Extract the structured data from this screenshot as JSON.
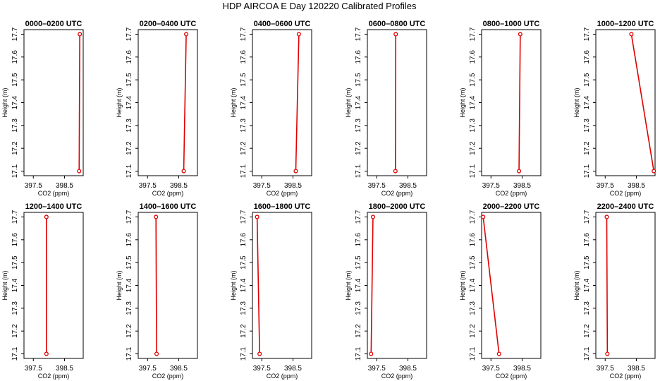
{
  "figure_title": "HDP AIRCOA E  Day 120220  Calibrated Profiles",
  "colors": {
    "line": "#e00000",
    "axis": "#000000",
    "background": "#ffffff"
  },
  "chart_data": [
    {
      "type": "line",
      "title": "0000–0200 UTC",
      "xlabel": "CO2 (ppm)",
      "ylabel": "Height (m)",
      "xlim": [
        397.2,
        399.1
      ],
      "ylim": [
        17.08,
        17.72
      ],
      "x_ticks": [
        397.5,
        398.5
      ],
      "x_tick_labels": [
        "397.5",
        "398.5"
      ],
      "y_ticks": [
        17.1,
        17.2,
        17.3,
        17.4,
        17.5,
        17.6,
        17.7
      ],
      "y_tick_labels": [
        "17.1",
        "17.2",
        "17.3",
        "17.4",
        "17.5",
        "17.6",
        "17.7"
      ],
      "series": [
        {
          "x": [
            398.97,
            398.99
          ],
          "y": [
            17.1,
            17.7
          ]
        }
      ]
    },
    {
      "type": "line",
      "title": "0200–0400 UTC",
      "xlabel": "CO2 (ppm)",
      "ylabel": "Height (m)",
      "xlim": [
        397.2,
        399.1
      ],
      "ylim": [
        17.08,
        17.72
      ],
      "x_ticks": [
        397.5,
        398.5
      ],
      "x_tick_labels": [
        "397.5",
        "398.5"
      ],
      "y_ticks": [
        17.1,
        17.2,
        17.3,
        17.4,
        17.5,
        17.6,
        17.7
      ],
      "y_tick_labels": [
        "17.1",
        "17.2",
        "17.3",
        "17.4",
        "17.5",
        "17.6",
        "17.7"
      ],
      "series": [
        {
          "x": [
            398.66,
            398.74
          ],
          "y": [
            17.1,
            17.7
          ]
        }
      ]
    },
    {
      "type": "line",
      "title": "0400–0600 UTC",
      "xlabel": "CO2 (ppm)",
      "ylabel": "Height (m)",
      "xlim": [
        397.2,
        399.1
      ],
      "ylim": [
        17.08,
        17.72
      ],
      "x_ticks": [
        397.5,
        398.5
      ],
      "x_tick_labels": [
        "397.5",
        "398.5"
      ],
      "y_ticks": [
        17.1,
        17.2,
        17.3,
        17.4,
        17.5,
        17.6,
        17.7
      ],
      "y_tick_labels": [
        "17.1",
        "17.2",
        "17.3",
        "17.4",
        "17.5",
        "17.6",
        "17.7"
      ],
      "series": [
        {
          "x": [
            398.59,
            398.69
          ],
          "y": [
            17.1,
            17.7
          ]
        }
      ]
    },
    {
      "type": "line",
      "title": "0600–0800 UTC",
      "xlabel": "CO2 (ppm)",
      "ylabel": "Height (m)",
      "xlim": [
        397.2,
        399.1
      ],
      "ylim": [
        17.08,
        17.72
      ],
      "x_ticks": [
        397.5,
        398.5
      ],
      "x_tick_labels": [
        "397.5",
        "398.5"
      ],
      "y_ticks": [
        17.1,
        17.2,
        17.3,
        17.4,
        17.5,
        17.6,
        17.7
      ],
      "y_tick_labels": [
        "17.1",
        "17.2",
        "17.3",
        "17.4",
        "17.5",
        "17.6",
        "17.7"
      ],
      "series": [
        {
          "x": [
            398.1,
            398.11
          ],
          "y": [
            17.1,
            17.7
          ]
        }
      ]
    },
    {
      "type": "line",
      "title": "0800–1000 UTC",
      "xlabel": "CO2 (ppm)",
      "ylabel": "Height (m)",
      "xlim": [
        397.2,
        399.1
      ],
      "ylim": [
        17.08,
        17.72
      ],
      "x_ticks": [
        397.5,
        398.5
      ],
      "x_tick_labels": [
        "397.5",
        "398.5"
      ],
      "y_ticks": [
        17.1,
        17.2,
        17.3,
        17.4,
        17.5,
        17.6,
        17.7
      ],
      "y_tick_labels": [
        "17.1",
        "17.2",
        "17.3",
        "17.4",
        "17.5",
        "17.6",
        "17.7"
      ],
      "series": [
        {
          "x": [
            398.4,
            398.44
          ],
          "y": [
            17.1,
            17.7
          ]
        }
      ]
    },
    {
      "type": "line",
      "title": "1000–1200 UTC",
      "xlabel": "CO2 (ppm)",
      "ylabel": "Height (m)",
      "xlim": [
        397.2,
        399.1
      ],
      "ylim": [
        17.08,
        17.72
      ],
      "x_ticks": [
        397.5,
        398.5
      ],
      "x_tick_labels": [
        "397.5",
        "398.5"
      ],
      "y_ticks": [
        17.1,
        17.2,
        17.3,
        17.4,
        17.5,
        17.6,
        17.7
      ],
      "y_tick_labels": [
        "17.1",
        "17.2",
        "17.3",
        "17.4",
        "17.5",
        "17.6",
        "17.7"
      ],
      "series": [
        {
          "x": [
            399.06,
            398.34
          ],
          "y": [
            17.1,
            17.7
          ]
        }
      ]
    },
    {
      "type": "line",
      "title": "1200–1400 UTC",
      "xlabel": "CO2 (ppm)",
      "ylabel": "Height (m)",
      "xlim": [
        397.2,
        399.1
      ],
      "ylim": [
        17.08,
        17.72
      ],
      "x_ticks": [
        397.5,
        398.5
      ],
      "x_tick_labels": [
        "397.5",
        "398.5"
      ],
      "y_ticks": [
        17.1,
        17.2,
        17.3,
        17.4,
        17.5,
        17.6,
        17.7
      ],
      "y_tick_labels": [
        "17.1",
        "17.2",
        "17.3",
        "17.4",
        "17.5",
        "17.6",
        "17.7"
      ],
      "series": [
        {
          "x": [
            397.92,
            397.92
          ],
          "y": [
            17.1,
            17.7
          ]
        }
      ]
    },
    {
      "type": "line",
      "title": "1400–1600 UTC",
      "xlabel": "CO2 (ppm)",
      "ylabel": "Height (m)",
      "xlim": [
        397.2,
        399.1
      ],
      "ylim": [
        17.08,
        17.72
      ],
      "x_ticks": [
        397.5,
        398.5
      ],
      "x_tick_labels": [
        "397.5",
        "398.5"
      ],
      "y_ticks": [
        17.1,
        17.2,
        17.3,
        17.4,
        17.5,
        17.6,
        17.7
      ],
      "y_tick_labels": [
        "17.1",
        "17.2",
        "17.3",
        "17.4",
        "17.5",
        "17.6",
        "17.7"
      ],
      "series": [
        {
          "x": [
            397.79,
            397.77
          ],
          "y": [
            17.1,
            17.7
          ]
        }
      ]
    },
    {
      "type": "line",
      "title": "1600–1800 UTC",
      "xlabel": "CO2 (ppm)",
      "ylabel": "Height (m)",
      "xlim": [
        397.2,
        399.1
      ],
      "ylim": [
        17.08,
        17.72
      ],
      "x_ticks": [
        397.5,
        398.5
      ],
      "x_tick_labels": [
        "397.5",
        "398.5"
      ],
      "y_ticks": [
        17.1,
        17.2,
        17.3,
        17.4,
        17.5,
        17.6,
        17.7
      ],
      "y_tick_labels": [
        "17.1",
        "17.2",
        "17.3",
        "17.4",
        "17.5",
        "17.6",
        "17.7"
      ],
      "series": [
        {
          "x": [
            397.43,
            397.35
          ],
          "y": [
            17.1,
            17.7
          ]
        }
      ]
    },
    {
      "type": "line",
      "title": "1800–2000 UTC",
      "xlabel": "CO2 (ppm)",
      "ylabel": "Height (m)",
      "xlim": [
        397.2,
        399.1
      ],
      "ylim": [
        17.08,
        17.72
      ],
      "x_ticks": [
        397.5,
        398.5
      ],
      "x_tick_labels": [
        "397.5",
        "398.5"
      ],
      "y_ticks": [
        17.1,
        17.2,
        17.3,
        17.4,
        17.5,
        17.6,
        17.7
      ],
      "y_tick_labels": [
        "17.1",
        "17.2",
        "17.3",
        "17.4",
        "17.5",
        "17.6",
        "17.7"
      ],
      "series": [
        {
          "x": [
            397.32,
            397.38
          ],
          "y": [
            17.1,
            17.7
          ]
        }
      ]
    },
    {
      "type": "line",
      "title": "2000–2200 UTC",
      "xlabel": "CO2 (ppm)",
      "ylabel": "Height (m)",
      "xlim": [
        397.2,
        399.1
      ],
      "ylim": [
        17.08,
        17.72
      ],
      "x_ticks": [
        397.5,
        398.5
      ],
      "x_tick_labels": [
        "397.5",
        "398.5"
      ],
      "y_ticks": [
        17.1,
        17.2,
        17.3,
        17.4,
        17.5,
        17.6,
        17.7
      ],
      "y_tick_labels": [
        "17.1",
        "17.2",
        "17.3",
        "17.4",
        "17.5",
        "17.6",
        "17.7"
      ],
      "series": [
        {
          "x": [
            397.76,
            397.25
          ],
          "y": [
            17.1,
            17.7
          ]
        }
      ]
    },
    {
      "type": "line",
      "title": "2200–2400 UTC",
      "xlabel": "CO2 (ppm)",
      "ylabel": "Height (m)",
      "xlim": [
        397.2,
        399.1
      ],
      "ylim": [
        17.08,
        17.72
      ],
      "x_ticks": [
        397.5,
        398.5
      ],
      "x_tick_labels": [
        "397.5",
        "398.5"
      ],
      "y_ticks": [
        17.1,
        17.2,
        17.3,
        17.4,
        17.5,
        17.6,
        17.7
      ],
      "y_tick_labels": [
        "17.1",
        "17.2",
        "17.3",
        "17.4",
        "17.5",
        "17.6",
        "17.7"
      ],
      "series": [
        {
          "x": [
            397.57,
            397.55
          ],
          "y": [
            17.1,
            17.7
          ]
        }
      ]
    }
  ]
}
